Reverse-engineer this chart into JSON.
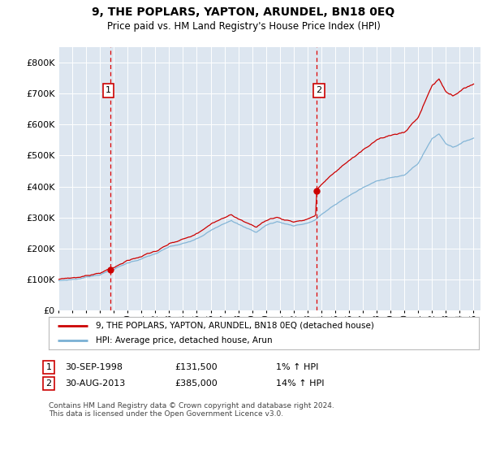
{
  "title": "9, THE POPLARS, YAPTON, ARUNDEL, BN18 0EQ",
  "subtitle": "Price paid vs. HM Land Registry's House Price Index (HPI)",
  "legend_line1": "9, THE POPLARS, YAPTON, ARUNDEL, BN18 0EQ (detached house)",
  "legend_line2": "HPI: Average price, detached house, Arun",
  "footnote": "Contains HM Land Registry data © Crown copyright and database right 2024.\nThis data is licensed under the Open Government Licence v3.0.",
  "annotation1_label": "1",
  "annotation1_date": "30-SEP-1998",
  "annotation1_price": "£131,500",
  "annotation1_hpi": "1% ↑ HPI",
  "annotation2_label": "2",
  "annotation2_date": "30-AUG-2013",
  "annotation2_price": "£385,000",
  "annotation2_hpi": "14% ↑ HPI",
  "background_color": "#dde6f0",
  "red_line_color": "#cc0000",
  "blue_line_color": "#7ab0d4",
  "grid_color": "#ffffff",
  "dashed_line_color": "#dd0000",
  "ylim": [
    0,
    850000
  ],
  "yticks": [
    0,
    100000,
    200000,
    300000,
    400000,
    500000,
    600000,
    700000,
    800000
  ],
  "ytick_labels": [
    "£0",
    "£100K",
    "£200K",
    "£300K",
    "£400K",
    "£500K",
    "£600K",
    "£700K",
    "£800K"
  ],
  "sale1_year": 1998.75,
  "sale1_value": 131500,
  "sale2_year": 2013.67,
  "sale2_value": 385000
}
